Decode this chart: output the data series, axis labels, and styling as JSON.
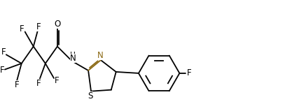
{
  "bg_color": "#ffffff",
  "bond_color": "#000000",
  "N_color": "#8B6914",
  "figsize": [
    4.07,
    1.59
  ],
  "dpi": 100,
  "xlim": [
    0,
    4.07
  ],
  "ylim": [
    0,
    1.59
  ],
  "lw": 1.3,
  "fontsize": 8.5
}
